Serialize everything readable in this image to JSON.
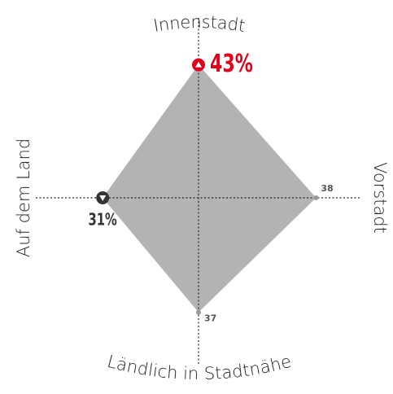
{
  "chart_data": {
    "type": "radar",
    "categories": [
      "Innenstadt",
      "Vorstadt",
      "Ländlich in Stadtnähe",
      "Auf dem Land"
    ],
    "values": [
      43,
      38,
      37,
      31
    ],
    "value_labels": [
      "43%",
      "38",
      "37",
      "31%"
    ],
    "rlim": [
      0,
      50
    ],
    "color": "#b3b3b3",
    "max_color": "#e2001a",
    "min_color": "#333333"
  }
}
